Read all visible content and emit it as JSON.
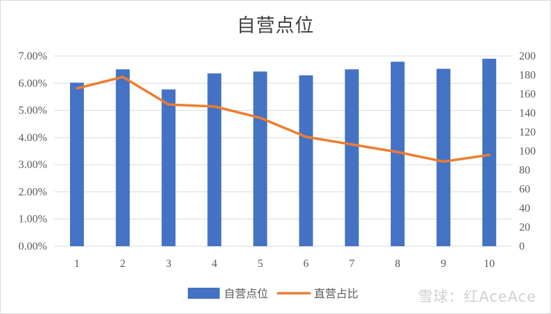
{
  "chart_data": {
    "type": "bar",
    "title": "自营点位",
    "categories": [
      "1",
      "2",
      "3",
      "4",
      "5",
      "6",
      "7",
      "8",
      "9",
      "10"
    ],
    "series": [
      {
        "name": "自营点位",
        "type": "bar",
        "axis": "left",
        "color": "#4472C4",
        "values": [
          0.0602,
          0.0651,
          0.0577,
          0.0636,
          0.0643,
          0.0629,
          0.0651,
          0.0679,
          0.0653,
          0.069
        ]
      },
      {
        "name": "直营占比",
        "type": "line",
        "axis": "right",
        "color": "#ED7D31",
        "values": [
          166,
          178,
          149,
          147,
          135,
          115,
          107,
          99,
          89,
          96
        ]
      }
    ],
    "y_left": {
      "ylim": [
        0,
        0.07
      ],
      "ticks": [
        "0.00%",
        "1.00%",
        "2.00%",
        "3.00%",
        "4.00%",
        "5.00%",
        "6.00%",
        "7.00%"
      ]
    },
    "y_right": {
      "ylim": [
        0,
        200
      ],
      "ticks": [
        "0",
        "20",
        "40",
        "60",
        "80",
        "100",
        "120",
        "140",
        "160",
        "180",
        "200"
      ]
    },
    "grid": true,
    "legend": "bottom"
  },
  "watermark": "雪球：红AceAce"
}
